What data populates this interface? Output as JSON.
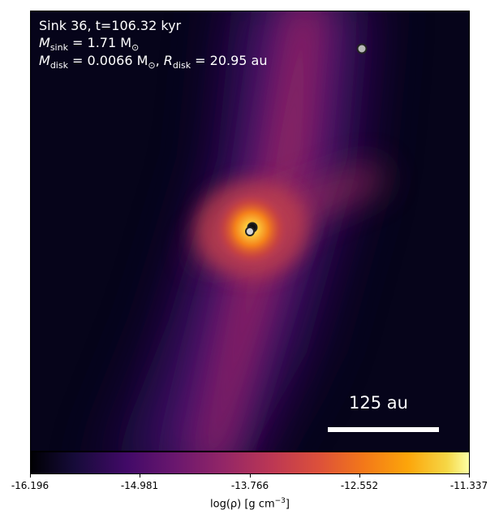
{
  "panel": {
    "sink_line": "Sink 36, t=106.32 kyr",
    "mass_sym": "M",
    "mass_sub": "sink",
    "mass_rest": " = 1.71 M",
    "mass_sun_sub": "⊙",
    "disk_mass_sym": "M",
    "disk_mass_sub": "disk",
    "disk_mass_rest": " = 0.0066 M",
    "disk_mass_sun_sub": "⊙",
    "disk_sep": ", ",
    "disk_r_sym": "R",
    "disk_r_sub": "disk",
    "disk_r_rest": " = 20.95 au",
    "scale_bar_label": "125 au"
  },
  "colorbar": {
    "colormap": "inferno",
    "min": -16.196,
    "max": -11.337,
    "ticks": [
      "-16.196",
      "-14.981",
      "-13.766",
      "-12.552",
      "-11.337"
    ],
    "label_prefix": "log(ρ) [g cm",
    "label_exp": "−3",
    "label_suffix": "]"
  },
  "sink_markers": [
    {
      "id": "sink-far",
      "fill": "#b8b8b8"
    },
    {
      "id": "sink-central-a",
      "fill": "#111111"
    },
    {
      "id": "sink-central-b",
      "fill": "#d6d6d6"
    }
  ]
}
